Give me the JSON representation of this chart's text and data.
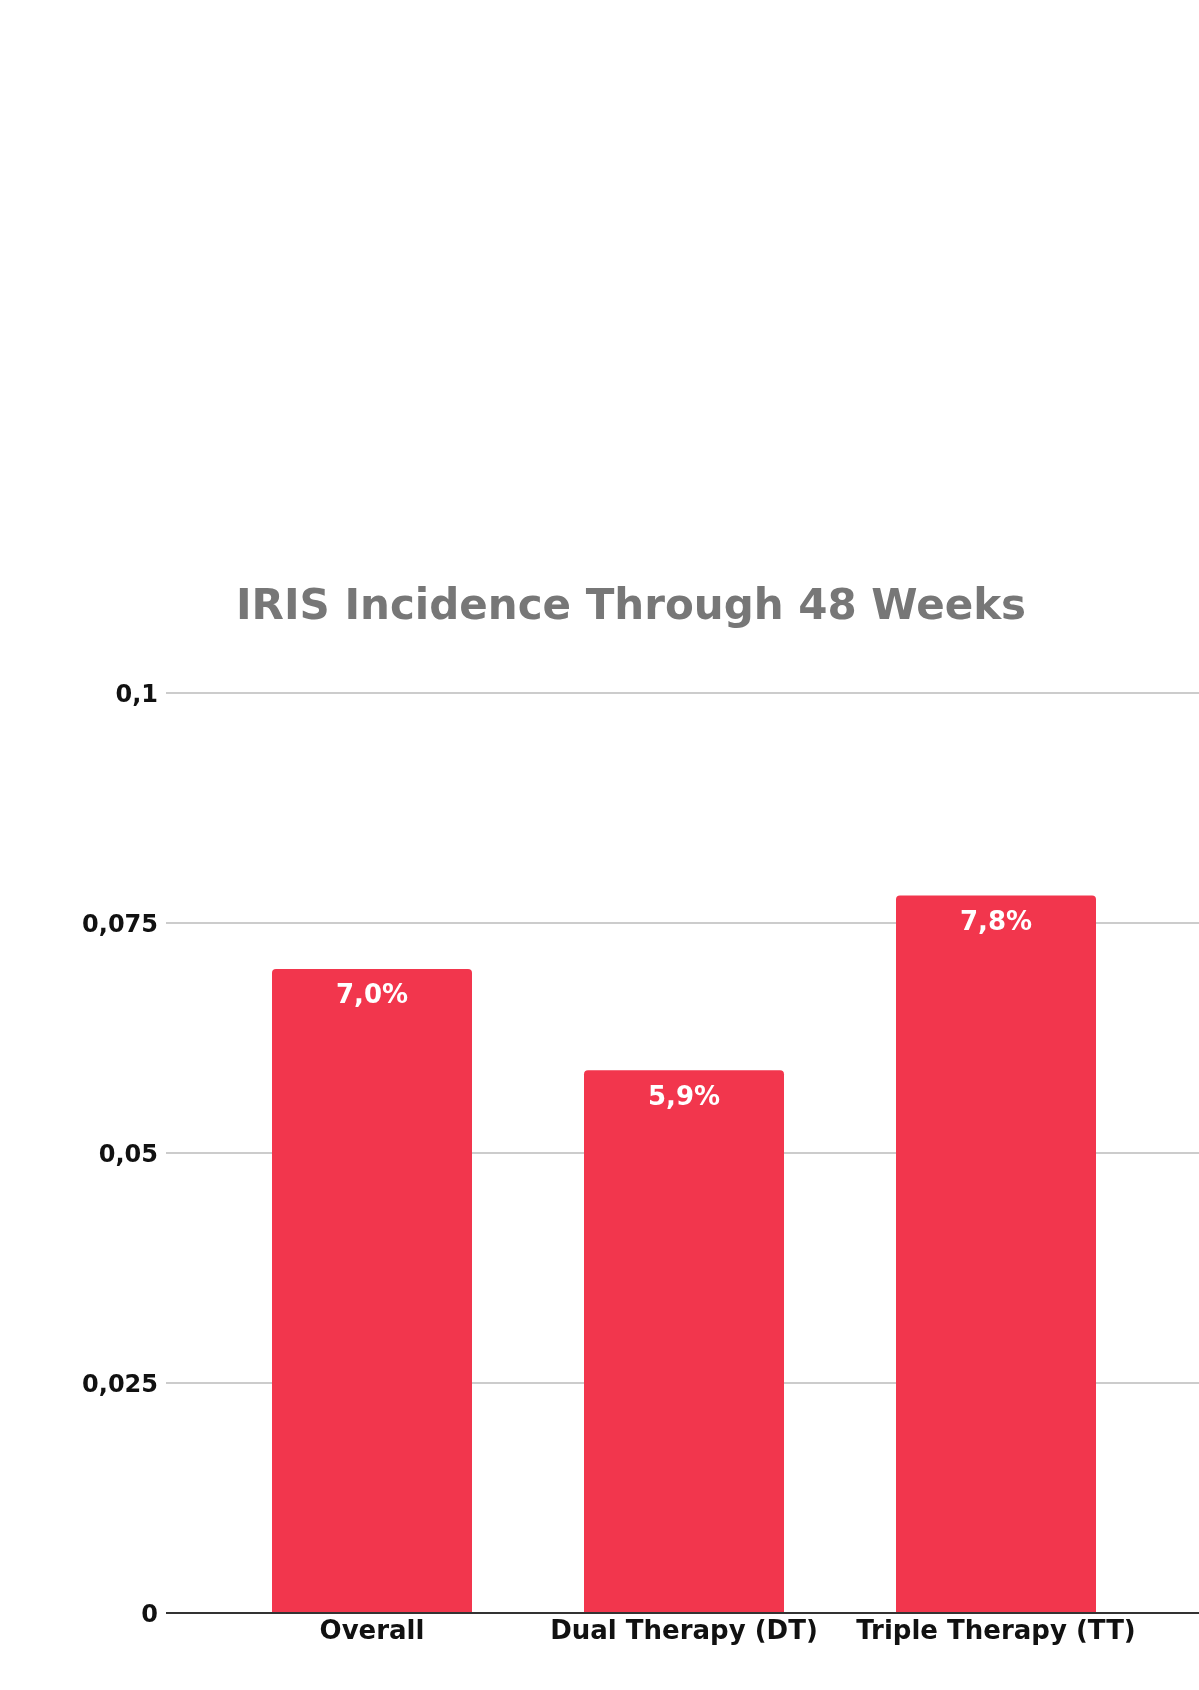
{
  "chart_data": {
    "type": "bar",
    "title": "IRIS Incidence Through 48 Weeks",
    "categories": [
      "Overall",
      "Dual Therapy (DT)",
      "Triple Therapy (TT)"
    ],
    "values": [
      0.07,
      0.059,
      0.078
    ],
    "value_labels": [
      "7,0%",
      "5,9%",
      "7,8%"
    ],
    "color": "#f2364d",
    "ylim": [
      0,
      0.1
    ],
    "yticks": [
      0,
      {
        "value": 0.025,
        "label": "0,025"
      },
      {
        "value": 0.05,
        "label": "0,05"
      },
      {
        "value": 0.075,
        "label": "0,075"
      },
      {
        "value": 0.1,
        "label": "0,1"
      }
    ],
    "grid": "y",
    "legend": false
  }
}
